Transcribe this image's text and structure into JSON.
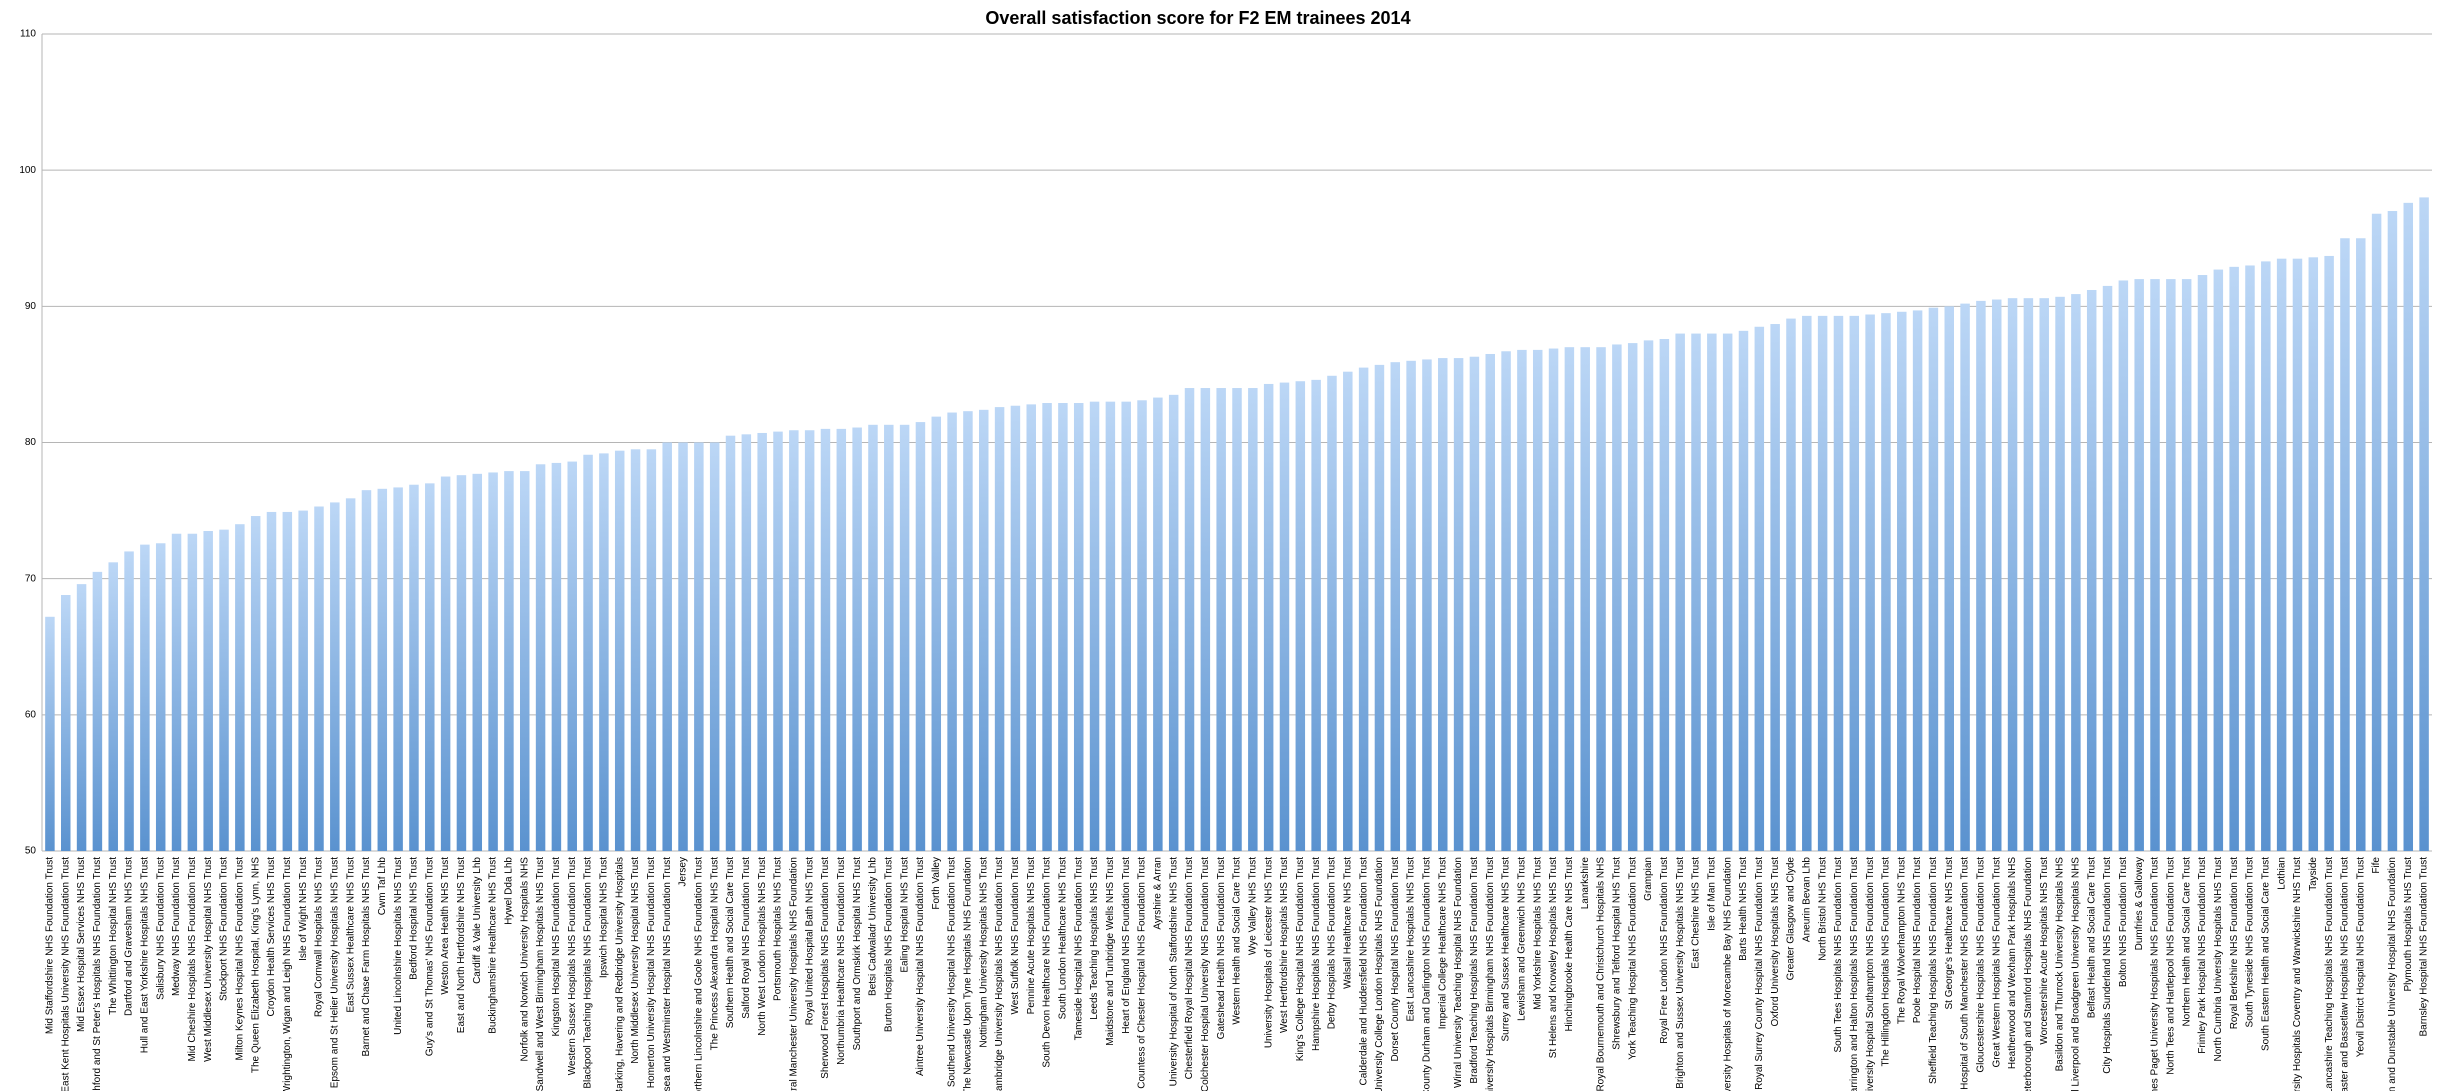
{
  "chart_data": {
    "type": "bar",
    "title": "Overall satisfaction score for F2 EM trainees 2014",
    "categories": [
      "Mid Staffordshire NHS Foundation Trust",
      "East Kent Hospitals University NHS Foundation Trust",
      "Mid Essex Hospital Services NHS Trust",
      "Ashford and St Peter's Hospitals NHS Foundation Trust",
      "The Whittington Hospital NHS Trust",
      "Dartford and Gravesham NHS Trust",
      "Hull and East Yorkshire Hospitals NHS Trust",
      "Salisbury NHS Foundation Trust",
      "Medway NHS Foundation Trust",
      "Mid Cheshire Hospitals NHS Foundation Trust",
      "West Middlesex University Hospital NHS Trust",
      "Stockport NHS Foundation Trust",
      "Milton Keynes Hospital NHS Foundation Trust",
      "The Queen Elizabeth Hospital, King's Lynn, NHS",
      "Croydon Health Services NHS Trust",
      "Wrightington, Wigan and Leigh NHS Foundation Trust",
      "Isle of Wight NHS Trust",
      "Royal Cornwall Hospitals NHS Trust",
      "Epsom and St Helier University Hospitals NHS Trust",
      "East Sussex Healthcare NHS Trust",
      "Barnet and Chase Farm Hospitals NHS Trust",
      "Cwm Taf Lhb",
      "United Lincolnshire Hospitals NHS Trust",
      "Bedford Hospital NHS Trust",
      "Guy's and St Thomas' NHS Foundation Trust",
      "Weston Area Health NHS Trust",
      "East and North Hertfordshire NHS Trust",
      "Cardiff & Vale University Lhb",
      "Buckinghamshire Healthcare NHS Trust",
      "Hywel Dda Lhb",
      "Norfolk and Norwich University Hospitals NHS",
      "Sandwell and West Birmingham Hospitals NHS Trust",
      "Kingston Hospital NHS Foundation Trust",
      "Western Sussex Hospitals NHS Foundation Trust",
      "Blackpool Teaching Hospitals NHS Foundation Trust",
      "Ipswich Hospital NHS Trust",
      "Barking, Havering and Redbridge University Hospitals",
      "North Middlesex University Hospital NHS Trust",
      "Homerton University Hospital NHS Foundation Trust",
      "Chelsea and Westminster Hospital NHS Foundation Trust",
      "Jersey",
      "Northern Lincolnshire and Goole NHS Foundation Trust",
      "The Princess Alexandra Hospital NHS Trust",
      "Southern Health and Social Care Trust",
      "Salford Royal NHS Foundation Trust",
      "North West London Hospitals NHS Trust",
      "Portsmouth Hospitals NHS Trust",
      "Central Manchester University Hospitals NHS Foundation",
      "Royal United Hospital Bath NHS Trust",
      "Sherwood Forest Hospitals NHS Foundation Trust",
      "Northumbria Healthcare NHS Foundation Trust",
      "Southport and Ormskirk Hospital NHS Trust",
      "Betsi Cadwaladr University Lhb",
      "Burton Hospitals NHS Foundation Trust",
      "Ealing Hospital NHS Trust",
      "Aintree University Hospital NHS Foundation Trust",
      "Forth Valley",
      "Southend University Hospital NHS Foundation Trust",
      "The Newcastle Upon Tyne Hospitals NHS Foundation",
      "Nottingham University Hospitals NHS Trust",
      "Cambridge University Hospitals NHS Foundation Trust",
      "West Suffolk NHS Foundation Trust",
      "Pennine Acute Hospitals NHS Trust",
      "South Devon Healthcare NHS Foundation Trust",
      "South London Healthcare NHS Trust",
      "Tameside Hospital NHS Foundation Trust",
      "Leeds Teaching Hospitals NHS Trust",
      "Maidstone and Tunbridge Wells NHS Trust",
      "Heart of England NHS Foundation Trust",
      "Countess of Chester Hospital NHS Foundation Trust",
      "Ayrshire & Arran",
      "University Hospital of North Staffordshire NHS Trust",
      "Chesterfield Royal Hospital NHS Foundation Trust",
      "Colchester Hospital University NHS Foundation Trust",
      "Gateshead Health NHS Foundation Trust",
      "Western Health and Social Care Trust",
      "Wye Valley NHS Trust",
      "University Hospitals of Leicester NHS Trust",
      "West Hertfordshire Hospitals NHS Trust",
      "King's College Hospital NHS Foundation Trust",
      "Hampshire Hospitals NHS Foundation Trust",
      "Derby Hospitals NHS Foundation Trust",
      "Walsall Healthcare NHS Trust",
      "Calderdale and Huddersfield NHS Foundation Trust",
      "University College London Hospitals NHS Foundation",
      "Dorset County Hospital NHS Foundation Trust",
      "East Lancashire Hospitals NHS Trust",
      "County Durham and Darlington NHS Foundation Trust",
      "Imperial College Healthcare NHS Trust",
      "Wirral University Teaching Hospital NHS Foundation",
      "Bradford Teaching Hospitals NHS Foundation Trust",
      "University Hospitals Birmingham NHS Foundation Trust",
      "Surrey and Sussex Healthcare NHS Trust",
      "Lewisham and Greenwich NHS Trust",
      "Mid Yorkshire Hospitals NHS Trust",
      "St Helens and Knowsley Hospitals NHS Trust",
      "Hinchingbrooke Health Care NHS Trust",
      "Lanarkshire",
      "The Royal Bournemouth and Christchurch Hospitals NHS",
      "Shrewsbury and Telford Hospital NHS Trust",
      "York Teaching Hospital NHS Foundation Trust",
      "Grampian",
      "Royal Free London NHS Foundation Trust",
      "Brighton and Sussex University Hospitals NHS Trust",
      "East Cheshire NHS Trust",
      "Isle of Man Trust",
      "University Hospitals of Morecambe Bay NHS Foundation",
      "Barts Health NHS Trust",
      "Royal Surrey County Hospital NHS Foundation Trust",
      "Oxford University Hospitals NHS Trust",
      "Greater Glasgow and Clyde",
      "Aneurin Bevan Lhb",
      "North Bristol NHS Trust",
      "South Tees Hospitals NHS Foundation Trust",
      "Warrington and Halton Hospitals NHS Foundation Trust",
      "University Hospital Southampton NHS Foundation Trust",
      "The Hillingdon Hospitals NHS Foundation Trust",
      "The Royal Wolverhampton NHS Trust",
      "Poole Hospital NHS Foundation Trust",
      "Sheffield Teaching Hospitals NHS Foundation Trust",
      "St George's Healthcare NHS Trust",
      "University Hospital of South Manchester NHS Foundation Trust",
      "Gloucestershire Hospitals NHS Foundation Trust",
      "Great Western Hospitals NHS Foundation Trust",
      "Heatherwood and Wexham Park Hospitals NHS",
      "Peterborough and Stamford Hospitals NHS Foundation",
      "Worcestershire Acute Hospitals NHS Trust",
      "Basildon and Thurrock University Hospitals NHS",
      "Royal Liverpool and Broadgreen University Hospitals NHS",
      "Belfast Health and Social Care Trust",
      "City Hospitals Sunderland NHS Foundation Trust",
      "Bolton NHS Foundation Trust",
      "Dumfries & Galloway",
      "James Paget University Hospitals NHS Foundation Trust",
      "North Tees and Hartlepool NHS Foundation Trust",
      "Northern Health and Social Care Trust",
      "Frimley Park Hospital NHS Foundation Trust",
      "North Cumbria University Hospitals NHS Trust",
      "Royal Berkshire NHS Foundation Trust",
      "South Tyneside NHS Foundation Trust",
      "South Eastern Health and Social Care Trust",
      "Lothian",
      "University Hospitals Coventry and Warwickshire NHS Trust",
      "Tayside",
      "Lancashire Teaching Hospitals NHS Foundation Trust",
      "Doncaster and Bassetlaw Hospitals NHS Foundation Trust",
      "Yeovil District Hospital NHS Foundation Trust",
      "Fife",
      "Luton and Dunstable University Hospital NHS Foundation",
      "Plymouth Hospitals NHS Trust",
      "Barnsley Hospital NHS Foundation Trust"
    ],
    "values": [
      67.2,
      68.8,
      69.6,
      70.5,
      71.2,
      72.0,
      72.5,
      72.6,
      73.3,
      73.3,
      73.5,
      73.6,
      74.0,
      74.6,
      74.9,
      74.9,
      75.0,
      75.3,
      75.6,
      75.9,
      76.5,
      76.6,
      76.7,
      76.9,
      77.0,
      77.5,
      77.6,
      77.7,
      77.8,
      77.9,
      77.9,
      78.4,
      78.5,
      78.6,
      79.1,
      79.2,
      79.4,
      79.5,
      79.5,
      80.0,
      80.0,
      80.0,
      80.0,
      80.5,
      80.6,
      80.7,
      80.8,
      80.9,
      80.9,
      81.0,
      81.0,
      81.1,
      81.3,
      81.3,
      81.3,
      81.5,
      81.9,
      82.2,
      82.3,
      82.4,
      82.6,
      82.7,
      82.8,
      82.9,
      82.9,
      82.9,
      83.0,
      83.0,
      83.0,
      83.1,
      83.3,
      83.5,
      84.0,
      84.0,
      84.0,
      84.0,
      84.0,
      84.3,
      84.4,
      84.5,
      84.6,
      84.9,
      85.2,
      85.5,
      85.7,
      85.9,
      86.0,
      86.1,
      86.2,
      86.2,
      86.3,
      86.5,
      86.7,
      86.8,
      86.8,
      86.9,
      87.0,
      87.0,
      87.0,
      87.2,
      87.3,
      87.5,
      87.6,
      88.0,
      88.0,
      88.0,
      88.0,
      88.2,
      88.5,
      88.7,
      89.1,
      89.3,
      89.3,
      89.3,
      89.3,
      89.4,
      89.5,
      89.6,
      89.7,
      89.9,
      90.0,
      90.2,
      90.4,
      90.5,
      90.6,
      90.6,
      90.6,
      90.7,
      90.9,
      91.2,
      91.5,
      91.9,
      92.0,
      92.0,
      92.0,
      92.0,
      92.3,
      92.7,
      92.9,
      93.0,
      93.3,
      93.5,
      93.5,
      93.6,
      93.7,
      95.0,
      95.0,
      96.8,
      97.0,
      97.6,
      98.0
    ],
    "color": "#6a9fd8",
    "ylim": [
      50,
      110
    ],
    "yticks": [
      50,
      60,
      70,
      80,
      90,
      100,
      110
    ],
    "grid": true
  }
}
